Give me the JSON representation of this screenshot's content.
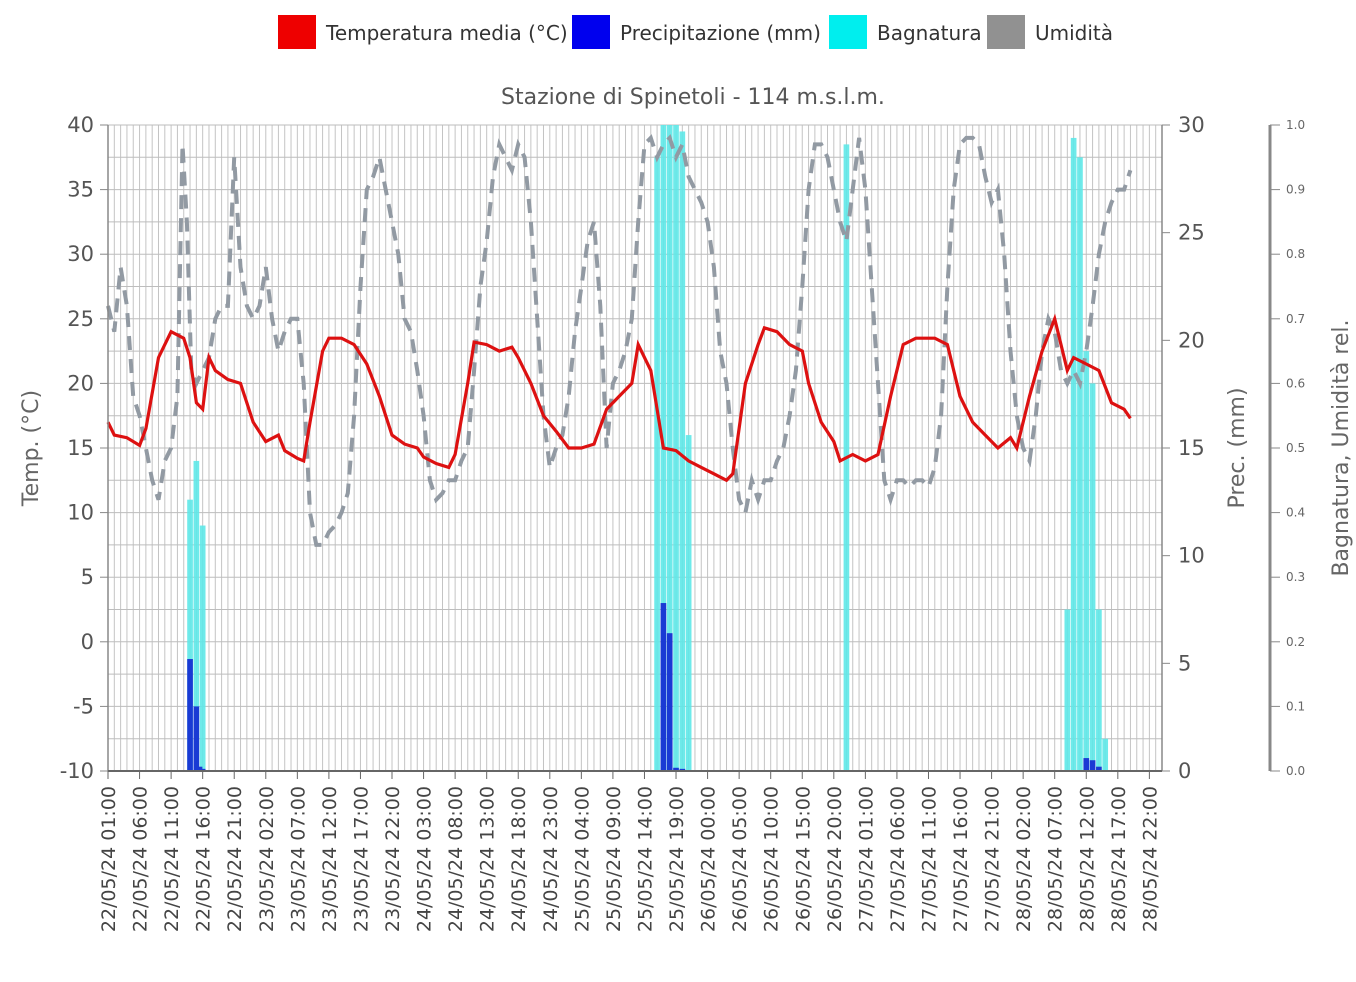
{
  "chart_data": {
    "type": "line",
    "title": "Stazione di Spinetoli - 114 m.s.l.m.",
    "legend": [
      {
        "label": "Temperatura media (°C)",
        "color": "#ee0000"
      },
      {
        "label": "Precipitazione (mm)",
        "color": "#0000ee"
      },
      {
        "label": "Bagnatura",
        "color": "#00eeee"
      },
      {
        "label": "Umidità",
        "color": "#919191"
      }
    ],
    "legend_position": "top-center",
    "y_left": {
      "label": "Temp. (°C)",
      "ticks": [
        "40",
        "35",
        "30",
        "25",
        "20",
        "15",
        "10",
        "5",
        "0",
        "-5",
        "-10"
      ],
      "range": [
        -10,
        40
      ]
    },
    "y_right1": {
      "label": "Prec. (mm)",
      "ticks": [
        "30",
        "25",
        "20",
        "15",
        "10",
        "5",
        "0"
      ],
      "range": [
        0,
        30
      ]
    },
    "y_right2": {
      "label": "Bagnatura, Umidità rel.",
      "ticks": [
        "1.0",
        "0.9",
        "0.8",
        "0.7",
        "0.6",
        "0.5",
        "0.4",
        "0.3",
        "0.2",
        "0.1",
        "0.0"
      ],
      "range": [
        0,
        1
      ]
    },
    "x_ticks": [
      "22/05/24 01:00",
      "22/05/24 06:00",
      "22/05/24 11:00",
      "22/05/24 16:00",
      "22/05/24 21:00",
      "23/05/24 02:00",
      "23/05/24 07:00",
      "23/05/24 12:00",
      "23/05/24 17:00",
      "23/05/24 22:00",
      "24/05/24 03:00",
      "24/05/24 08:00",
      "24/05/24 13:00",
      "24/05/24 18:00",
      "24/05/24 23:00",
      "25/05/24 04:00",
      "25/05/24 09:00",
      "25/05/24 14:00",
      "25/05/24 19:00",
      "26/05/24 00:00",
      "26/05/24 05:00",
      "26/05/24 10:00",
      "26/05/24 15:00",
      "26/05/24 20:00",
      "27/05/24 01:00",
      "27/05/24 06:00",
      "27/05/24 11:00",
      "27/05/24 16:00",
      "27/05/24 21:00",
      "28/05/24 02:00",
      "28/05/24 07:00",
      "28/05/24 12:00",
      "28/05/24 17:00",
      "28/05/24 22:00"
    ],
    "x_range_hours": [
      0,
      167
    ],
    "grid": true,
    "series": [
      {
        "name": "Temperatura media (°C)",
        "axis": "temp",
        "points": [
          [
            0,
            17
          ],
          [
            1,
            16
          ],
          [
            3,
            15.8
          ],
          [
            5,
            15.2
          ],
          [
            6,
            16.5
          ],
          [
            8,
            22
          ],
          [
            10,
            24
          ],
          [
            12,
            23.5
          ],
          [
            13,
            22
          ],
          [
            14,
            18.5
          ],
          [
            15,
            18
          ],
          [
            16,
            22
          ],
          [
            17,
            21
          ],
          [
            19,
            20.3
          ],
          [
            21,
            20
          ],
          [
            23,
            17
          ],
          [
            25,
            15.5
          ],
          [
            27,
            16
          ],
          [
            28,
            14.8
          ],
          [
            30,
            14.2
          ],
          [
            31,
            14
          ],
          [
            32,
            17
          ],
          [
            34,
            22.5
          ],
          [
            35,
            23.5
          ],
          [
            37,
            23.5
          ],
          [
            39,
            23
          ],
          [
            41,
            21.5
          ],
          [
            43,
            19
          ],
          [
            45,
            16
          ],
          [
            47,
            15.3
          ],
          [
            49,
            15
          ],
          [
            50,
            14.3
          ],
          [
            52,
            13.8
          ],
          [
            54,
            13.5
          ],
          [
            55,
            14.5
          ],
          [
            57,
            20
          ],
          [
            58,
            23.2
          ],
          [
            60,
            23
          ],
          [
            62,
            22.5
          ],
          [
            64,
            22.8
          ],
          [
            65,
            22
          ],
          [
            67,
            20
          ],
          [
            69,
            17.5
          ],
          [
            71,
            16.3
          ],
          [
            73,
            15
          ],
          [
            75,
            15
          ],
          [
            77,
            15.3
          ],
          [
            79,
            18
          ],
          [
            81,
            19
          ],
          [
            83,
            20
          ],
          [
            84,
            23
          ],
          [
            86,
            21
          ],
          [
            87,
            18
          ],
          [
            88,
            15
          ],
          [
            90,
            14.8
          ],
          [
            92,
            14
          ],
          [
            94,
            13.5
          ],
          [
            96,
            13
          ],
          [
            98,
            12.5
          ],
          [
            99,
            13
          ],
          [
            101,
            20
          ],
          [
            103,
            23
          ],
          [
            104,
            24.3
          ],
          [
            106,
            24
          ],
          [
            108,
            23
          ],
          [
            110,
            22.5
          ],
          [
            111,
            20
          ],
          [
            113,
            17
          ],
          [
            115,
            15.5
          ],
          [
            116,
            14
          ],
          [
            118,
            14.5
          ],
          [
            120,
            14
          ],
          [
            122,
            14.5
          ],
          [
            124,
            19
          ],
          [
            126,
            23
          ],
          [
            128,
            23.5
          ],
          [
            131,
            23.5
          ],
          [
            133,
            23
          ],
          [
            135,
            19
          ],
          [
            137,
            17
          ],
          [
            139,
            16
          ],
          [
            141,
            15
          ],
          [
            143,
            15.8
          ],
          [
            144,
            15
          ],
          [
            146,
            19
          ],
          [
            148,
            22.5
          ],
          [
            150,
            25
          ],
          [
            151,
            23
          ],
          [
            152,
            21
          ],
          [
            153,
            22
          ],
          [
            155,
            21.5
          ],
          [
            157,
            21
          ],
          [
            159,
            18.5
          ],
          [
            161,
            18
          ],
          [
            162,
            17.3
          ]
        ]
      },
      {
        "name": "Umidità",
        "axis": "ratio",
        "points": [
          [
            0,
            0.72
          ],
          [
            1,
            0.68
          ],
          [
            2,
            0.78
          ],
          [
            3,
            0.72
          ],
          [
            4,
            0.58
          ],
          [
            5,
            0.55
          ],
          [
            6,
            0.5
          ],
          [
            7,
            0.45
          ],
          [
            8,
            0.42
          ],
          [
            9,
            0.48
          ],
          [
            10,
            0.5
          ],
          [
            11,
            0.58
          ],
          [
            11.8,
            0.97
          ],
          [
            12.5,
            0.85
          ],
          [
            13.2,
            0.62
          ],
          [
            14,
            0.6
          ],
          [
            15,
            0.62
          ],
          [
            16,
            0.64
          ],
          [
            17,
            0.7
          ],
          [
            18,
            0.72
          ],
          [
            19,
            0.72
          ],
          [
            20,
            0.95
          ],
          [
            21,
            0.78
          ],
          [
            22,
            0.72
          ],
          [
            23,
            0.7
          ],
          [
            24,
            0.72
          ],
          [
            25,
            0.78
          ],
          [
            26,
            0.7
          ],
          [
            27,
            0.65
          ],
          [
            28,
            0.68
          ],
          [
            29,
            0.7
          ],
          [
            30,
            0.7
          ],
          [
            31,
            0.6
          ],
          [
            32,
            0.4
          ],
          [
            33,
            0.35
          ],
          [
            34,
            0.35
          ],
          [
            35,
            0.37
          ],
          [
            36,
            0.38
          ],
          [
            37,
            0.4
          ],
          [
            38,
            0.43
          ],
          [
            39,
            0.55
          ],
          [
            40,
            0.75
          ],
          [
            41,
            0.9
          ],
          [
            42,
            0.92
          ],
          [
            43,
            0.95
          ],
          [
            44,
            0.9
          ],
          [
            45,
            0.85
          ],
          [
            46,
            0.8
          ],
          [
            47,
            0.7
          ],
          [
            48,
            0.68
          ],
          [
            49,
            0.62
          ],
          [
            50,
            0.55
          ],
          [
            51,
            0.45
          ],
          [
            52,
            0.42
          ],
          [
            53,
            0.43
          ],
          [
            54,
            0.45
          ],
          [
            55,
            0.45
          ],
          [
            56,
            0.48
          ],
          [
            57,
            0.5
          ],
          [
            58,
            0.62
          ],
          [
            59,
            0.75
          ],
          [
            60,
            0.82
          ],
          [
            61,
            0.92
          ],
          [
            62,
            0.97
          ],
          [
            63,
            0.95
          ],
          [
            64,
            0.93
          ],
          [
            65,
            0.97
          ],
          [
            66,
            0.95
          ],
          [
            67,
            0.85
          ],
          [
            68,
            0.7
          ],
          [
            69,
            0.55
          ],
          [
            70,
            0.47
          ],
          [
            71,
            0.5
          ],
          [
            72,
            0.52
          ],
          [
            73,
            0.58
          ],
          [
            74,
            0.68
          ],
          [
            75,
            0.75
          ],
          [
            76,
            0.82
          ],
          [
            77,
            0.85
          ],
          [
            78,
            0.72
          ],
          [
            79,
            0.5
          ],
          [
            80,
            0.6
          ],
          [
            81,
            0.62
          ],
          [
            82,
            0.65
          ],
          [
            83,
            0.7
          ],
          [
            84,
            0.85
          ],
          [
            85,
            0.97
          ],
          [
            86,
            0.98
          ],
          [
            87,
            0.95
          ],
          [
            88,
            0.97
          ],
          [
            89,
            0.98
          ],
          [
            90,
            0.95
          ],
          [
            91,
            0.97
          ],
          [
            92,
            0.92
          ],
          [
            93,
            0.9
          ],
          [
            94,
            0.88
          ],
          [
            95,
            0.85
          ],
          [
            96,
            0.78
          ],
          [
            97,
            0.65
          ],
          [
            98,
            0.6
          ],
          [
            99,
            0.5
          ],
          [
            100,
            0.42
          ],
          [
            101,
            0.4
          ],
          [
            102,
            0.45
          ],
          [
            103,
            0.42
          ],
          [
            104,
            0.45
          ],
          [
            105,
            0.45
          ],
          [
            106,
            0.48
          ],
          [
            107,
            0.5
          ],
          [
            108,
            0.55
          ],
          [
            109,
            0.62
          ],
          [
            110,
            0.75
          ],
          [
            111,
            0.9
          ],
          [
            112,
            0.97
          ],
          [
            113,
            0.97
          ],
          [
            114,
            0.95
          ],
          [
            115,
            0.9
          ],
          [
            116,
            0.85
          ],
          [
            117,
            0.82
          ],
          [
            118,
            0.9
          ],
          [
            119,
            0.98
          ],
          [
            120,
            0.9
          ],
          [
            121,
            0.75
          ],
          [
            122,
            0.6
          ],
          [
            123,
            0.45
          ],
          [
            124,
            0.42
          ],
          [
            125,
            0.45
          ],
          [
            126,
            0.45
          ],
          [
            127,
            0.44
          ],
          [
            128,
            0.45
          ],
          [
            129,
            0.45
          ],
          [
            130,
            0.44
          ],
          [
            131,
            0.47
          ],
          [
            132,
            0.55
          ],
          [
            133,
            0.75
          ],
          [
            134,
            0.9
          ],
          [
            135,
            0.97
          ],
          [
            136,
            0.98
          ],
          [
            137,
            0.98
          ],
          [
            138,
            0.97
          ],
          [
            139,
            0.92
          ],
          [
            140,
            0.88
          ],
          [
            141,
            0.9
          ],
          [
            142,
            0.8
          ],
          [
            143,
            0.65
          ],
          [
            144,
            0.55
          ],
          [
            145,
            0.5
          ],
          [
            146,
            0.48
          ],
          [
            147,
            0.55
          ],
          [
            148,
            0.65
          ],
          [
            149,
            0.7
          ],
          [
            150,
            0.68
          ],
          [
            151,
            0.62
          ],
          [
            152,
            0.6
          ],
          [
            153,
            0.62
          ],
          [
            154,
            0.6
          ],
          [
            155,
            0.65
          ],
          [
            156,
            0.72
          ],
          [
            157,
            0.8
          ],
          [
            158,
            0.85
          ],
          [
            159,
            0.88
          ],
          [
            160,
            0.9
          ],
          [
            161,
            0.9
          ],
          [
            162,
            0.93
          ]
        ]
      }
    ],
    "bars_precipitazione": [
      [
        13,
        5.2
      ],
      [
        14,
        3.0
      ],
      [
        14.5,
        0.2
      ],
      [
        15,
        0.1
      ],
      [
        88,
        7.8
      ],
      [
        89,
        6.4
      ],
      [
        90,
        0.15
      ],
      [
        91,
        0.1
      ],
      [
        155,
        0.6
      ],
      [
        156,
        0.5
      ],
      [
        157,
        0.2
      ]
    ],
    "bars_bagnatura": [
      [
        13,
        0.42
      ],
      [
        14,
        0.48
      ],
      [
        15,
        0.38
      ],
      [
        87,
        0.95
      ],
      [
        88,
        1.0
      ],
      [
        89,
        1.0
      ],
      [
        90,
        1.0
      ],
      [
        91,
        0.99
      ],
      [
        92,
        0.52
      ],
      [
        117,
        0.97
      ],
      [
        152,
        0.25
      ],
      [
        153,
        0.98
      ],
      [
        154,
        0.95
      ],
      [
        155,
        0.65
      ],
      [
        156,
        0.6
      ],
      [
        157,
        0.25
      ],
      [
        158,
        0.05
      ]
    ]
  }
}
